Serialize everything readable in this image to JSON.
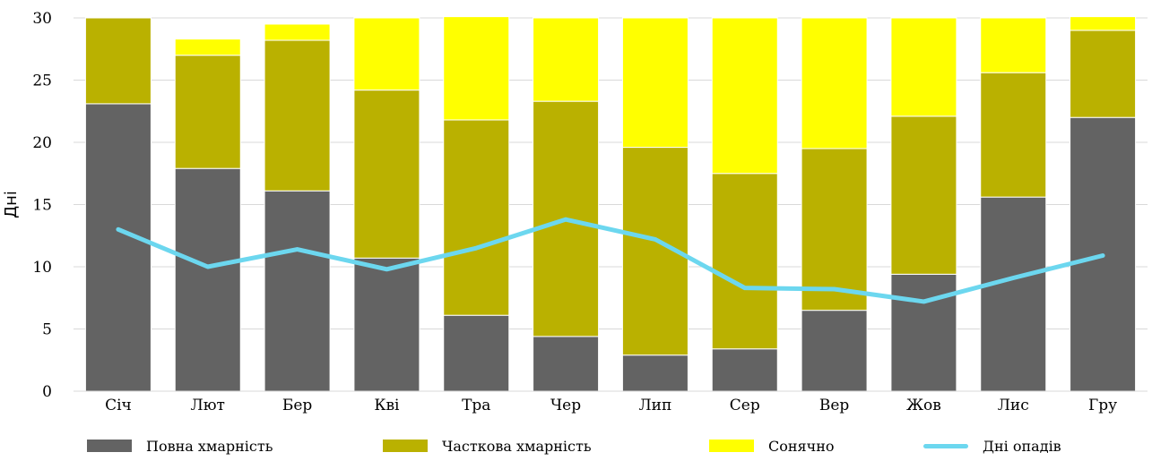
{
  "colors": {
    "overcast": "#636363",
    "partly": "#bab100",
    "sunny": "#ffff00",
    "rain": "#6cd7ef",
    "grid": "#d9d9d9"
  },
  "chart_data": {
    "type": "bar",
    "stacked": true,
    "ylabel": "Дні",
    "xlabel": "",
    "ylim": [
      0,
      30
    ],
    "yticks": [
      0,
      5,
      10,
      15,
      20,
      25,
      30
    ],
    "grid": true,
    "legend_position": "bottom",
    "categories": [
      "Січ",
      "Лют",
      "Бер",
      "Кві",
      "Тра",
      "Чер",
      "Лип",
      "Сер",
      "Вер",
      "Жов",
      "Лис",
      "Гру"
    ],
    "series": [
      {
        "name": "Повна хмарність",
        "type": "bar",
        "color_key": "overcast",
        "values": [
          23.1,
          17.9,
          16.1,
          10.7,
          6.1,
          4.4,
          2.9,
          3.4,
          6.5,
          9.4,
          15.6,
          22.0
        ]
      },
      {
        "name": "Часткова хмарність",
        "type": "bar",
        "color_key": "partly",
        "values": [
          6.9,
          9.1,
          12.1,
          13.5,
          15.7,
          18.9,
          16.7,
          14.1,
          13.0,
          12.7,
          10.0,
          7.0
        ]
      },
      {
        "name": "Сонячно",
        "type": "bar",
        "color_key": "sunny",
        "values": [
          0.0,
          1.3,
          1.3,
          5.8,
          8.3,
          6.7,
          10.4,
          12.5,
          10.5,
          7.9,
          4.4,
          1.1
        ]
      },
      {
        "name": "Дні опадів",
        "type": "line",
        "color_key": "rain",
        "values": [
          13.0,
          10.0,
          11.4,
          9.8,
          11.5,
          13.8,
          12.2,
          8.3,
          8.2,
          7.2,
          9.1,
          10.9
        ]
      }
    ]
  }
}
